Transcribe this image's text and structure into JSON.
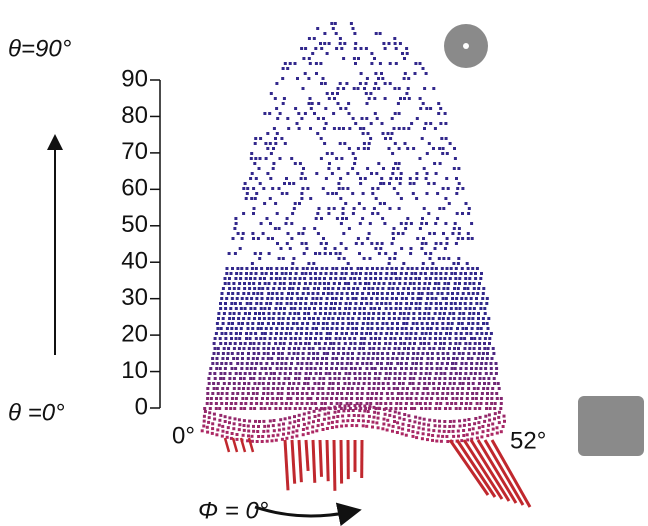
{
  "axis": {
    "ylim": [
      0,
      90
    ],
    "yticks": [
      0,
      10,
      20,
      30,
      40,
      50,
      60,
      70,
      80,
      90
    ]
  },
  "labels": {
    "theta_top": "θ=90°",
    "theta_bottom": "θ =0°",
    "phi_left": "0°",
    "phi_right": "52°",
    "phi": "Φ = 0°"
  }
}
